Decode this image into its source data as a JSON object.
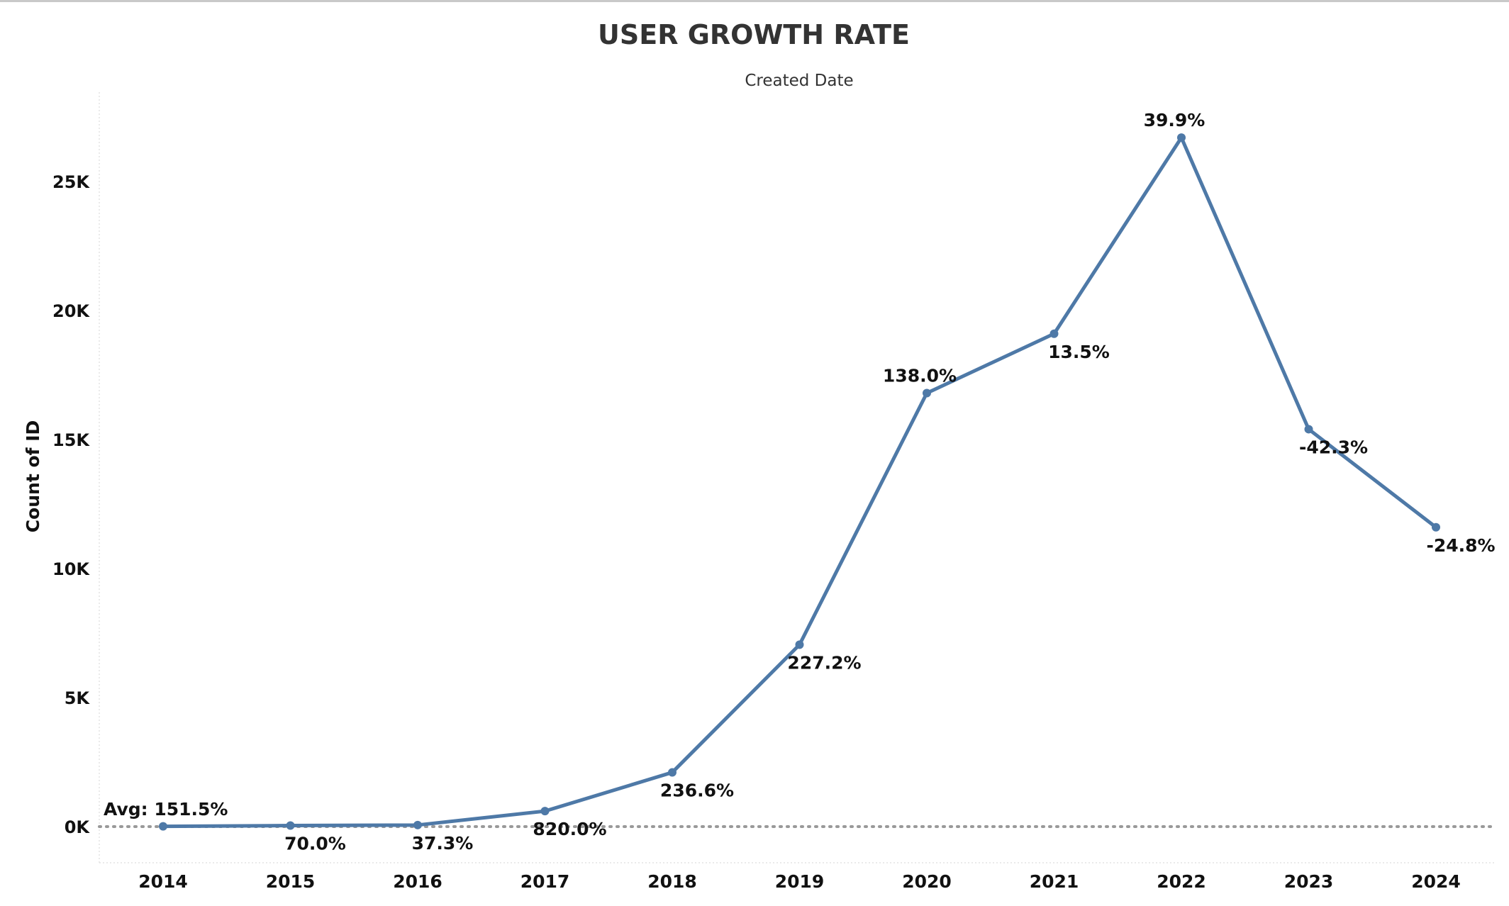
{
  "chart_data": {
    "type": "line",
    "title": "USER GROWTH RATE",
    "subtitle": "Created Date",
    "xlabel": "",
    "ylabel": "Count of ID",
    "categories": [
      "2014",
      "2015",
      "2016",
      "2017",
      "2018",
      "2019",
      "2020",
      "2021",
      "2022",
      "2023",
      "2024"
    ],
    "series": [
      {
        "values": [
          10,
          40,
          60,
          600,
          2100,
          7050,
          16800,
          19100,
          26700,
          15400,
          11600
        ],
        "labels": [
          "",
          "70.0%",
          "37.3%",
          "820.0%",
          "236.6%",
          "227.2%",
          "138.0%",
          "13.5%",
          "39.9%",
          "-42.3%",
          "-24.8%"
        ],
        "label_pos": [
          "below",
          "below",
          "below",
          "below",
          "below",
          "below",
          "above",
          "below",
          "above",
          "below",
          "below"
        ],
        "color": "#4e79a7"
      }
    ],
    "ylim": [
      0,
      27500
    ],
    "yticks": [
      0,
      5000,
      10000,
      15000,
      20000,
      25000
    ],
    "ytick_labels": [
      "0K",
      "5K",
      "10K",
      "15K",
      "20K",
      "25K"
    ],
    "reference_line": {
      "value": 0,
      "label": "Avg: 151.5%",
      "style": "dotted",
      "color": "#999999"
    },
    "grid": false,
    "legend": "none"
  }
}
